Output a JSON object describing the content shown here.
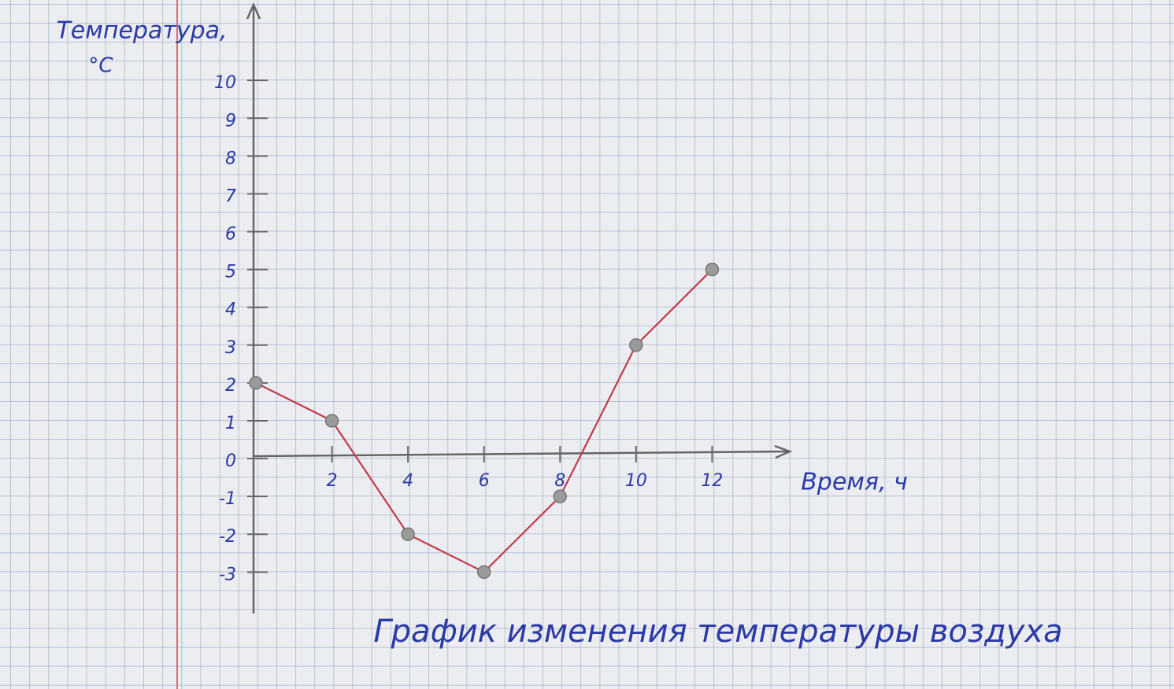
{
  "chart_data": {
    "type": "line",
    "title": "График изменения температуры воздуха",
    "ylabel": [
      "Температура,",
      "°C"
    ],
    "xlabel": "Время, ч",
    "x": [
      0,
      2,
      4,
      6,
      8,
      10,
      12
    ],
    "values": [
      2,
      1,
      -2,
      -3,
      -1,
      3,
      5
    ],
    "color": "#c23a4c",
    "marker_color": "#9a9a9a",
    "xlim": [
      0,
      14
    ],
    "ylim": [
      -4,
      12
    ],
    "xticks": [
      2,
      4,
      6,
      8,
      10,
      12
    ],
    "yticks": [
      -3,
      -2,
      -1,
      0,
      1,
      2,
      3,
      4,
      5,
      6,
      7,
      8,
      9,
      10
    ]
  }
}
